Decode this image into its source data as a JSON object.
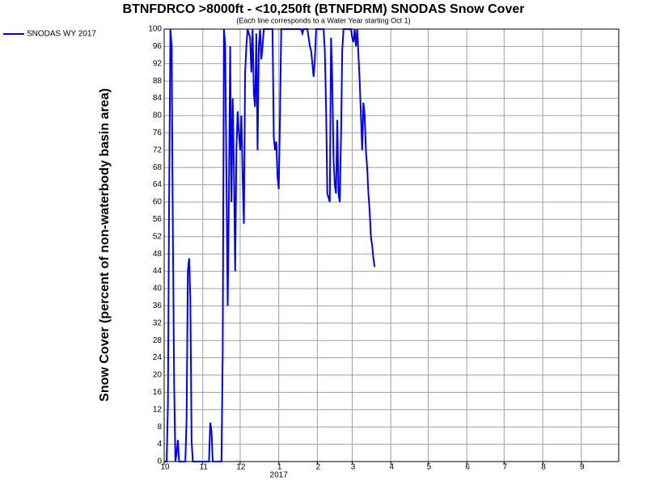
{
  "chart_data": {
    "type": "line",
    "title": "BTNFDRCO >8000ft - <10,250ft (BTNFDRM) SNODAS Snow Cover",
    "subtitle": "(Each line corresponds to a Water Year starting Oct 1)",
    "y_label": "Snow Cover (percent of non-waterbody basin area)",
    "annotations": [
      {
        "x": 92,
        "text": "2017"
      }
    ],
    "xlim": [
      0,
      365
    ],
    "xticks": [
      {
        "value": 0,
        "label": "10"
      },
      {
        "value": 31,
        "label": "11"
      },
      {
        "value": 61,
        "label": "12"
      },
      {
        "value": 92,
        "label": "1"
      },
      {
        "value": 123,
        "label": "2"
      },
      {
        "value": 151,
        "label": "3"
      },
      {
        "value": 182,
        "label": "4"
      },
      {
        "value": 212,
        "label": "5"
      },
      {
        "value": 243,
        "label": "6"
      },
      {
        "value": 273,
        "label": "7"
      },
      {
        "value": 304,
        "label": "8"
      },
      {
        "value": 335,
        "label": "9"
      }
    ],
    "ylim": [
      0,
      100
    ],
    "yticks": [
      0,
      4,
      8,
      12,
      16,
      20,
      24,
      28,
      32,
      36,
      40,
      44,
      48,
      52,
      56,
      60,
      64,
      68,
      72,
      76,
      80,
      84,
      88,
      92,
      96,
      100
    ],
    "grid": true,
    "legend": "top-left",
    "series": [
      {
        "name": "SNODAS WY 2017",
        "color": "#0000ff",
        "x": [
          0,
          2,
          3,
          4,
          5,
          6,
          7,
          8,
          9,
          10,
          11,
          12,
          17,
          18,
          19,
          20,
          21,
          22,
          23,
          36,
          37,
          38,
          39,
          46,
          47,
          48,
          49,
          50,
          51,
          52,
          53,
          54,
          55,
          56,
          57,
          58,
          59,
          60,
          61,
          62,
          63,
          64,
          65,
          66,
          67,
          69,
          70,
          71,
          72,
          73,
          74,
          75,
          76,
          77,
          78,
          79,
          80,
          87,
          88,
          89,
          90,
          91,
          92,
          93,
          94,
          110,
          111,
          112,
          115,
          116,
          117,
          118,
          119,
          120,
          121,
          122,
          128,
          129,
          130,
          131,
          132,
          133,
          134,
          135,
          136,
          137,
          138,
          139,
          140,
          141,
          142,
          143,
          144,
          150,
          151,
          152,
          153,
          154,
          155,
          156,
          157,
          158,
          159,
          160,
          161,
          162,
          163,
          164,
          165,
          166,
          167,
          168,
          169
        ],
        "values": [
          0,
          0,
          13,
          62,
          100,
          96,
          52,
          18,
          0,
          2,
          5,
          0,
          0,
          10,
          44,
          47,
          38,
          5,
          0,
          0,
          9,
          7,
          0,
          0,
          25,
          100,
          96,
          66,
          36,
          62,
          96,
          60,
          84,
          68,
          44,
          72,
          81,
          76,
          72,
          80,
          66,
          55,
          90,
          96,
          100,
          98,
          90,
          100,
          85,
          82,
          99,
          72,
          96,
          100,
          93,
          96,
          100,
          100,
          75,
          72,
          74,
          66,
          63,
          80,
          100,
          100,
          99,
          100,
          100,
          98,
          96,
          95,
          92,
          89,
          93,
          100,
          100,
          95,
          82,
          62,
          61,
          60,
          98,
          88,
          70,
          64,
          62,
          79,
          62,
          60,
          75,
          95,
          100,
          100,
          98,
          97,
          100,
          96,
          100,
          94,
          88,
          80,
          72,
          83,
          80,
          72,
          68,
          62,
          58,
          52,
          50,
          47,
          45
        ]
      }
    ]
  }
}
